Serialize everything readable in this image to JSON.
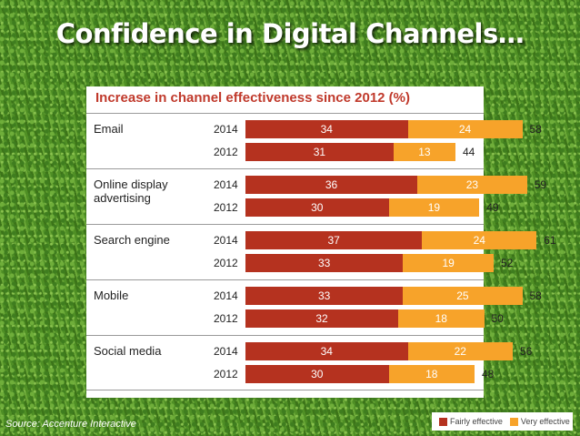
{
  "title": "Confidence in Digital Channels…",
  "source": "Source: Accenture Interactive",
  "colors": {
    "fairly": "#b5321f",
    "very": "#f7a32a"
  },
  "chart_data": {
    "type": "bar",
    "orientation": "horizontal",
    "stacked": true,
    "title": "Increase in channel effectiveness since 2012 (%)",
    "legend": [
      "Fairly effective",
      "Very effective"
    ],
    "categories": [
      {
        "label": "Email",
        "rows": [
          {
            "year": "2014",
            "fairly": 34,
            "very": 24,
            "total": 58
          },
          {
            "year": "2012",
            "fairly": 31,
            "very": 13,
            "total": 44
          }
        ]
      },
      {
        "label": "Online display advertising",
        "rows": [
          {
            "year": "2014",
            "fairly": 36,
            "very": 23,
            "total": 59
          },
          {
            "year": "2012",
            "fairly": 30,
            "very": 19,
            "total": 49
          }
        ]
      },
      {
        "label": "Search engine",
        "rows": [
          {
            "year": "2014",
            "fairly": 37,
            "very": 24,
            "total": 61
          },
          {
            "year": "2012",
            "fairly": 33,
            "very": 19,
            "total": 52
          }
        ]
      },
      {
        "label": "Mobile",
        "rows": [
          {
            "year": "2014",
            "fairly": 33,
            "very": 25,
            "total": 58
          },
          {
            "year": "2012",
            "fairly": 32,
            "very": 18,
            "total": 50
          }
        ]
      },
      {
        "label": "Social media",
        "rows": [
          {
            "year": "2014",
            "fairly": 34,
            "very": 22,
            "total": 56
          },
          {
            "year": "2012",
            "fairly": 30,
            "very": 18,
            "total": 48
          }
        ]
      }
    ]
  }
}
